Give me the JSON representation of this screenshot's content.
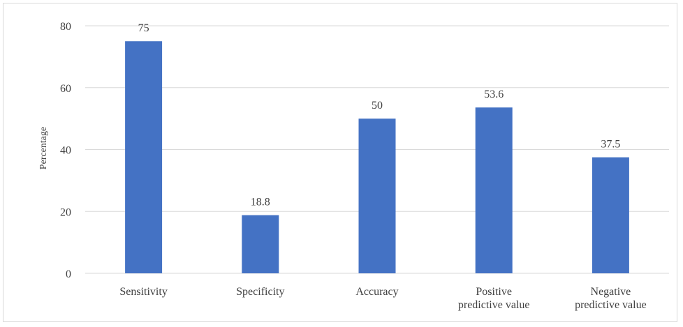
{
  "chart_data": {
    "type": "bar",
    "categories": [
      [
        "Sensitivity"
      ],
      [
        "Specificity"
      ],
      [
        "Accuracy"
      ],
      [
        "Positive",
        "predictive value"
      ],
      [
        "Negative",
        "predictive value"
      ]
    ],
    "values": [
      75,
      18.8,
      50,
      53.6,
      37.5
    ],
    "value_labels": [
      "75",
      "18.8",
      "50",
      "53.6",
      "37.5"
    ],
    "title": "",
    "xlabel": "",
    "ylabel": "Percentage",
    "ylim": [
      0,
      80
    ],
    "yticks": [
      "0",
      "20",
      "40",
      "60",
      "80"
    ],
    "grid": true,
    "bar_color": "#4472C4",
    "grid_color": "#d9d9d9"
  }
}
